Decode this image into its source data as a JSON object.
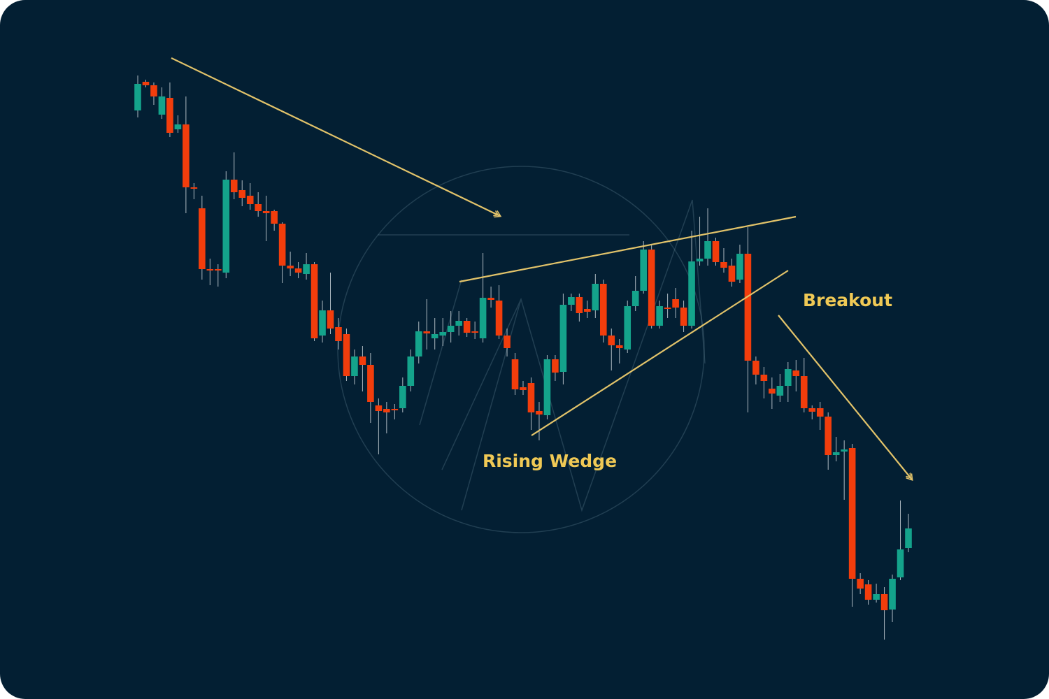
{
  "chart_data": {
    "type": "candlestick",
    "up_color": "#14a38b",
    "down_color": "#f23d0c",
    "ylim": [
      0,
      1000
    ],
    "annotations": [
      "Rising Wedge",
      "Breakout"
    ],
    "open": [
      842,
      883,
      878,
      836,
      860,
      815,
      822,
      732,
      702,
      615,
      615,
      610,
      743,
      728,
      720,
      708,
      698,
      698,
      680,
      620,
      616,
      608,
      622,
      520,
      556,
      532,
      522,
      462,
      490,
      478,
      420,
      415,
      415,
      416,
      448,
      490,
      526,
      516,
      520,
      525,
      534,
      541,
      526,
      516,
      574,
      570,
      520,
      486,
      446,
      452,
      412,
      406,
      486,
      468,
      564,
      575,
      558,
      556,
      594,
      520,
      506,
      500,
      562,
      584,
      643,
      534,
      560,
      572,
      560,
      534,
      626,
      630,
      655,
      625,
      620,
      600,
      637,
      484,
      464,
      444,
      434,
      448,
      470,
      462,
      416,
      416,
      404,
      349,
      354,
      359,
      172,
      164,
      142,
      150,
      128,
      174,
      216
    ],
    "high": [
      892,
      886,
      882,
      875,
      882,
      835,
      862,
      738,
      720,
      630,
      622,
      755,
      782,
      742,
      738,
      725,
      720,
      700,
      682,
      640,
      625,
      638,
      625,
      570,
      610,
      545,
      530,
      500,
      505,
      495,
      430,
      425,
      422,
      460,
      500,
      540,
      572,
      545,
      545,
      555,
      555,
      545,
      540,
      638,
      590,
      592,
      530,
      495,
      455,
      460,
      425,
      492,
      492,
      580,
      580,
      580,
      570,
      608,
      600,
      530,
      515,
      570,
      605,
      655,
      650,
      570,
      580,
      588,
      570,
      670,
      690,
      702,
      660,
      645,
      630,
      650,
      675,
      490,
      475,
      460,
      465,
      482,
      485,
      488,
      420,
      425,
      410,
      375,
      370,
      365,
      180,
      170,
      165,
      160,
      178,
      284,
      265
    ],
    "low": [
      832,
      875,
      850,
      830,
      804,
      810,
      695,
      715,
      600,
      592,
      590,
      602,
      715,
      705,
      700,
      690,
      655,
      670,
      595,
      605,
      602,
      600,
      512,
      510,
      522,
      500,
      455,
      450,
      440,
      395,
      350,
      380,
      400,
      410,
      440,
      480,
      500,
      500,
      505,
      510,
      520,
      518,
      515,
      510,
      560,
      515,
      490,
      435,
      435,
      385,
      370,
      400,
      455,
      450,
      555,
      540,
      545,
      545,
      510,
      470,
      480,
      495,
      555,
      580,
      530,
      530,
      545,
      545,
      525,
      530,
      620,
      620,
      620,
      610,
      590,
      595,
      410,
      450,
      430,
      415,
      425,
      425,
      440,
      410,
      400,
      385,
      328,
      340,
      285,
      132,
      150,
      135,
      138,
      85,
      110,
      170,
      210
    ],
    "close": [
      880,
      878,
      862,
      862,
      810,
      822,
      732,
      730,
      615,
      614,
      614,
      743,
      725,
      717,
      708,
      698,
      695,
      680,
      620,
      616,
      610,
      622,
      516,
      556,
      530,
      512,
      462,
      490,
      478,
      425,
      412,
      410,
      414,
      448,
      490,
      526,
      523,
      522,
      525,
      534,
      541,
      524,
      524,
      574,
      571,
      520,
      502,
      443,
      442,
      410,
      407,
      486,
      467,
      564,
      575,
      552,
      554,
      594,
      520,
      506,
      502,
      562,
      584,
      643,
      534,
      562,
      558,
      560,
      534,
      626,
      630,
      655,
      625,
      617,
      597,
      637,
      484,
      464,
      455,
      437,
      448,
      472,
      462,
      416,
      411,
      404,
      349,
      353,
      357,
      172,
      158,
      142,
      150,
      127,
      172,
      214,
      244
    ]
  }
}
